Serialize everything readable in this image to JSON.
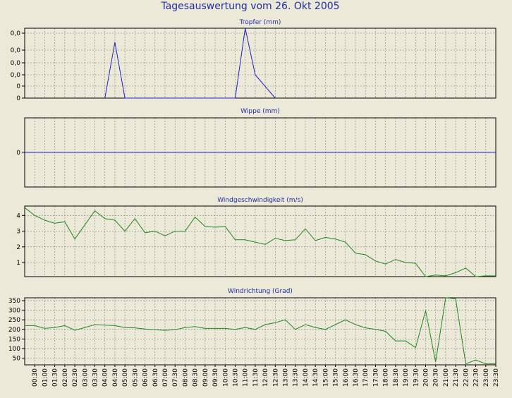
{
  "title": "Tagesauswertung vom 26. Okt 2005",
  "colors": {
    "background": "#ece9d8",
    "plot_border": "#000000",
    "grid": "#808080",
    "title_text": "#1e2ca8",
    "rain_series": "#1a22c8",
    "wind_series": "#1a8a1a"
  },
  "x_ticks": [
    "00:30",
    "01:00",
    "01:30",
    "02:00",
    "02:30",
    "03:00",
    "03:30",
    "04:00",
    "04:30",
    "05:00",
    "05:30",
    "06:00",
    "06:30",
    "07:00",
    "07:30",
    "08:00",
    "08:30",
    "09:00",
    "09:30",
    "10:00",
    "10:30",
    "11:00",
    "11:30",
    "12:00",
    "12:30",
    "13:00",
    "13:30",
    "14:00",
    "14:30",
    "15:00",
    "15:30",
    "16:00",
    "16:30",
    "17:00",
    "17:30",
    "18:00",
    "18:30",
    "19:00",
    "19:30",
    "20:00",
    "20:30",
    "21:00",
    "21:30",
    "22:00",
    "22:30",
    "23:00",
    "23:30"
  ],
  "chart_data": [
    {
      "type": "line",
      "title": "Tropfer (mm)",
      "ytick_labels": [
        "0,0",
        "0,0",
        "0,0",
        "0,0",
        "0",
        "0"
      ],
      "ylim": [
        0,
        0.06
      ],
      "grid": true,
      "series": [
        {
          "points": [
            [
              8,
              0
            ],
            [
              9,
              0.048
            ],
            [
              10,
              0
            ],
            [
              21,
              0
            ],
            [
              22,
              0.06
            ],
            [
              23,
              0.02
            ],
            [
              25,
              0
            ]
          ]
        }
      ]
    },
    {
      "type": "line",
      "title": "Wippe (mm)",
      "ytick_labels": [
        "0"
      ],
      "ylim": [
        -1,
        1
      ],
      "grid": true,
      "series": [
        {
          "points": [
            [
              0,
              0
            ],
            [
              47,
              0
            ]
          ]
        }
      ]
    },
    {
      "type": "line",
      "title": "Windgeschwindigkeit (m/s)",
      "ytick_labels": [
        "1",
        "2",
        "3",
        "4"
      ],
      "ylim": [
        0.1,
        4.6
      ],
      "grid": true,
      "series": [
        {
          "values": [
            4.5,
            4.0,
            3.7,
            3.5,
            3.6,
            2.5,
            3.4,
            4.3,
            3.8,
            3.7,
            3.0,
            3.8,
            2.9,
            3.0,
            2.7,
            3.0,
            3.0,
            3.9,
            3.3,
            3.25,
            3.3,
            2.45,
            2.45,
            2.3,
            2.15,
            2.55,
            2.4,
            2.45,
            3.15,
            2.4,
            2.6,
            2.5,
            2.3,
            1.6,
            1.5,
            1.1,
            0.9,
            1.2,
            1.0,
            0.95,
            0.1,
            0.2,
            0.15,
            0.35,
            0.65,
            0.1,
            0.15,
            0.15
          ]
        }
      ]
    },
    {
      "type": "line",
      "title": "Windrichtung (Grad)",
      "ytick_labels": [
        "50",
        "100",
        "150",
        "200",
        "250",
        "300",
        "350"
      ],
      "ylim": [
        15,
        365
      ],
      "grid": true,
      "series": [
        {
          "values": [
            220,
            220,
            205,
            210,
            220,
            195,
            210,
            225,
            222,
            220,
            210,
            208,
            202,
            198,
            195,
            198,
            210,
            215,
            205,
            205,
            205,
            200,
            210,
            200,
            225,
            235,
            250,
            200,
            225,
            210,
            200,
            225,
            250,
            225,
            208,
            200,
            190,
            140,
            140,
            105,
            298,
            30,
            365,
            360,
            20,
            40,
            20,
            20
          ]
        }
      ]
    }
  ]
}
